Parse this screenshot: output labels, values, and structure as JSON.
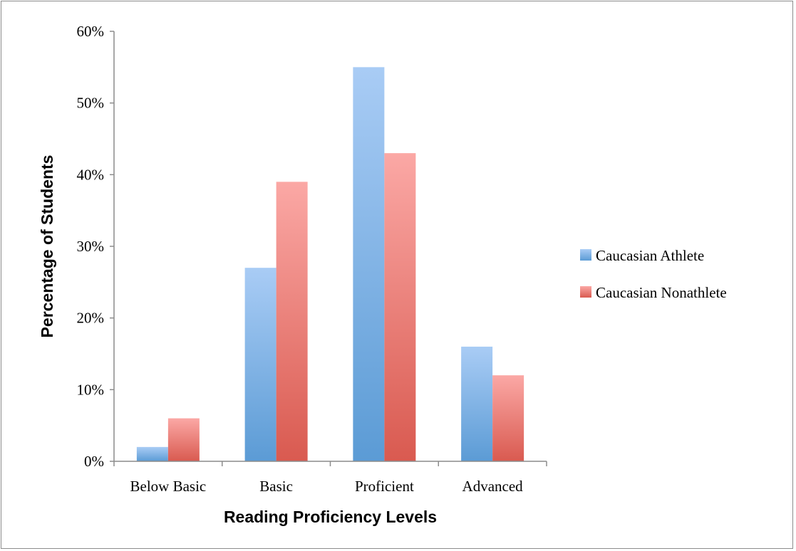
{
  "chart_data": {
    "type": "bar",
    "categories": [
      "Below Basic",
      "Basic",
      "Proficient",
      "Advanced"
    ],
    "series": [
      {
        "name": "Caucasian Athlete",
        "values": [
          2,
          27,
          55,
          16
        ],
        "color": "#5b9bd5",
        "color_light": "#a9ccf5"
      },
      {
        "name": "Caucasian Nonathlete",
        "values": [
          6,
          39,
          43,
          12
        ],
        "color": "#d95a50",
        "color_light": "#fba8a5"
      }
    ],
    "title": "",
    "xlabel": "Reading Proficiency Levels",
    "ylabel": "Percentage of Students",
    "ylim": [
      0,
      60
    ],
    "yticks": [
      0,
      10,
      20,
      30,
      40,
      50,
      60
    ],
    "ytick_labels": [
      "0%",
      "10%",
      "20%",
      "30%",
      "40%",
      "50%",
      "60%"
    ],
    "grid": false,
    "legend_position": "right"
  }
}
